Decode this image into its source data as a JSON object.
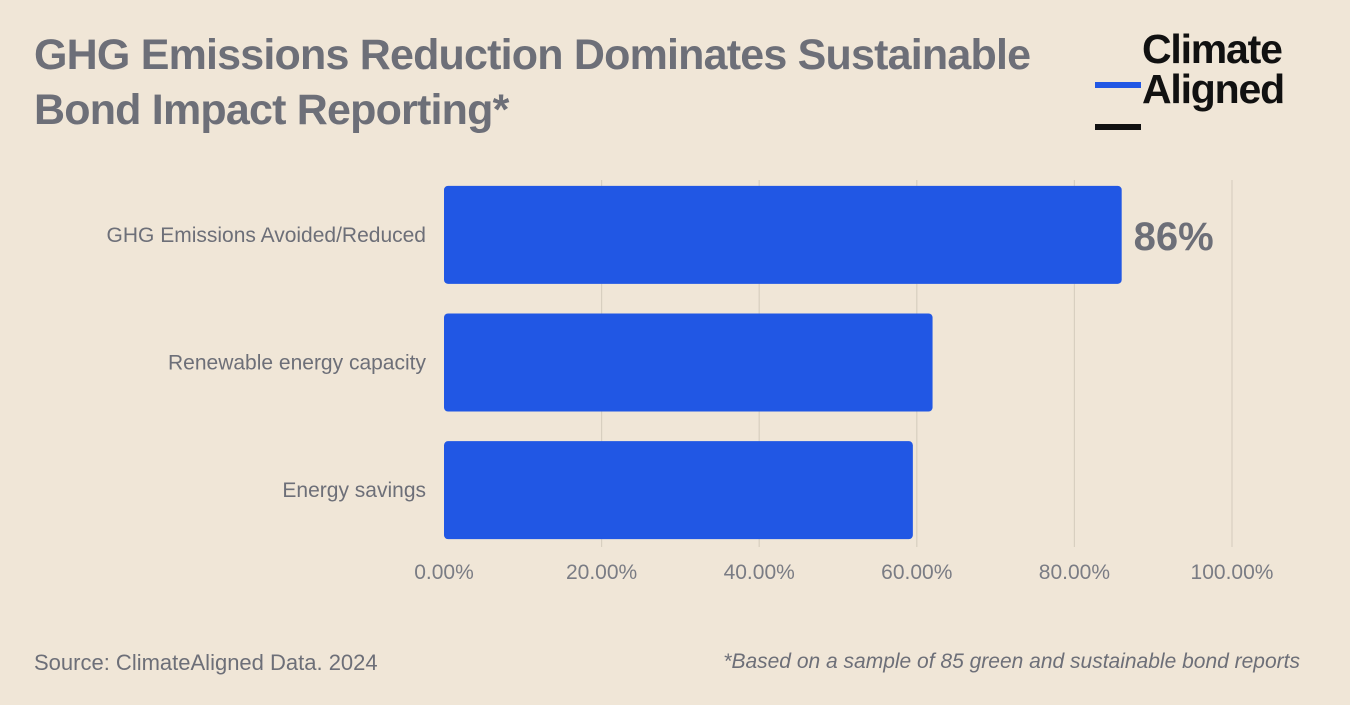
{
  "title": "GHG Emissions Reduction Dominates Sustainable Bond Impact Reporting*",
  "logo": {
    "line1": "Climate",
    "line2": "Aligned"
  },
  "source": "Source: ClimateAligned Data. 2024",
  "footnote": "*Based on a sample of 85 green and sustainable bond reports",
  "colors": {
    "bar": "#2157e4",
    "background": "#f0e6d7",
    "text": "#6d6f78",
    "grid": "#d8cfc0"
  },
  "chart_data": {
    "type": "bar",
    "orientation": "horizontal",
    "categories": [
      "GHG Emissions Avoided/Reduced",
      "Renewable energy capacity",
      "Energy savings"
    ],
    "values": [
      86,
      62,
      59.5
    ],
    "data_labels": [
      "86%",
      null,
      null
    ],
    "xlim": [
      0,
      100
    ],
    "xticks": [
      0,
      20,
      40,
      60,
      80,
      100
    ],
    "xtick_labels": [
      "0.00%",
      "20.00%",
      "40.00%",
      "60.00%",
      "80.00%",
      "100.00%"
    ],
    "grid": true,
    "xlabel": "",
    "ylabel": ""
  }
}
